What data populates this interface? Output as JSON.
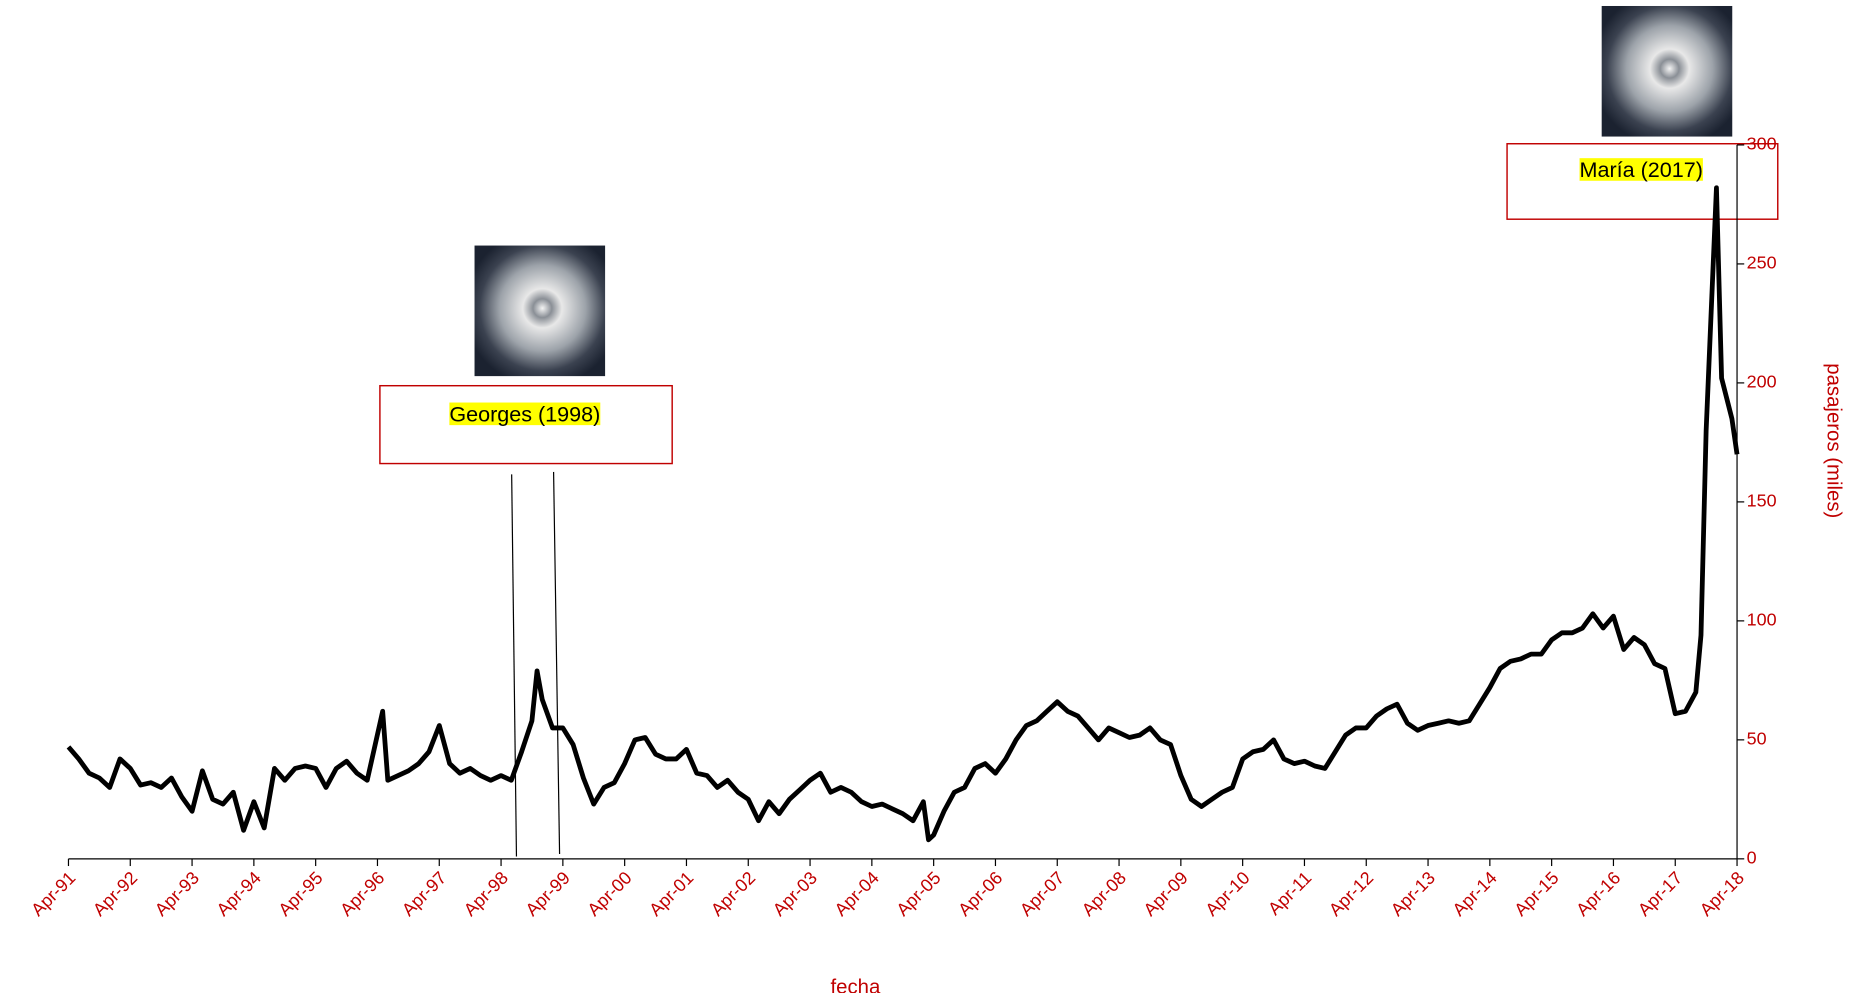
{
  "chart_data": {
    "type": "line",
    "x_label": "fecha",
    "y_label": "pasajeros (miles)",
    "x": [
      "1991-04",
      "1991-06",
      "1991-08",
      "1991-10",
      "1991-12",
      "1992-02",
      "1992-04",
      "1992-06",
      "1992-08",
      "1992-10",
      "1992-12",
      "1993-02",
      "1993-04",
      "1993-06",
      "1993-08",
      "1993-10",
      "1993-12",
      "1994-02",
      "1994-04",
      "1994-06",
      "1994-08",
      "1994-10",
      "1994-12",
      "1995-02",
      "1995-04",
      "1995-06",
      "1995-08",
      "1995-10",
      "1995-12",
      "1996-02",
      "1996-05",
      "1996-06",
      "1996-08",
      "1996-10",
      "1996-12",
      "1997-02",
      "1997-04",
      "1997-06",
      "1997-08",
      "1997-10",
      "1997-12",
      "1998-02",
      "1998-04",
      "1998-06",
      "1998-08",
      "1998-10",
      "1998-11",
      "1998-12",
      "1999-02",
      "1999-04",
      "1999-06",
      "1999-08",
      "1999-10",
      "1999-12",
      "2000-02",
      "2000-04",
      "2000-06",
      "2000-08",
      "2000-10",
      "2000-12",
      "2001-02",
      "2001-04",
      "2001-06",
      "2001-08",
      "2001-10",
      "2001-12",
      "2002-02",
      "2002-04",
      "2002-06",
      "2002-08",
      "2002-10",
      "2002-12",
      "2003-02",
      "2003-04",
      "2003-06",
      "2003-08",
      "2003-10",
      "2003-12",
      "2004-02",
      "2004-04",
      "2004-06",
      "2004-08",
      "2004-10",
      "2004-12",
      "2005-02",
      "2005-03",
      "2005-04",
      "2005-06",
      "2005-08",
      "2005-10",
      "2005-12",
      "2006-02",
      "2006-04",
      "2006-06",
      "2006-08",
      "2006-10",
      "2006-12",
      "2007-02",
      "2007-04",
      "2007-06",
      "2007-08",
      "2007-10",
      "2007-12",
      "2008-02",
      "2008-04",
      "2008-06",
      "2008-08",
      "2008-10",
      "2008-12",
      "2009-02",
      "2009-04",
      "2009-06",
      "2009-08",
      "2009-10",
      "2009-12",
      "2010-02",
      "2010-04",
      "2010-06",
      "2010-08",
      "2010-10",
      "2010-12",
      "2011-02",
      "2011-04",
      "2011-06",
      "2011-08",
      "2011-10",
      "2011-12",
      "2012-02",
      "2012-04",
      "2012-06",
      "2012-08",
      "2012-10",
      "2012-12",
      "2013-02",
      "2013-04",
      "2013-06",
      "2013-08",
      "2013-10",
      "2013-12",
      "2014-02",
      "2014-04",
      "2014-06",
      "2014-08",
      "2014-10",
      "2014-12",
      "2015-02",
      "2015-04",
      "2015-06",
      "2015-08",
      "2015-10",
      "2015-12",
      "2016-02",
      "2016-04",
      "2016-06",
      "2016-08",
      "2016-10",
      "2016-12",
      "2017-02",
      "2017-04",
      "2017-06",
      "2017-08",
      "2017-09",
      "2017-10",
      "2017-12",
      "2018-01",
      "2018-03",
      "2018-04"
    ],
    "series": [
      {
        "color": "#000000",
        "values": [
          47,
          42,
          36,
          34,
          30,
          42,
          38,
          31,
          32,
          30,
          34,
          26,
          20,
          37,
          25,
          23,
          28,
          12,
          24,
          13,
          38,
          33,
          38,
          39,
          38,
          30,
          38,
          41,
          36,
          33,
          62,
          33,
          35,
          37,
          40,
          45,
          56,
          40,
          36,
          38,
          35,
          33,
          35,
          33,
          45,
          58,
          79,
          67,
          55,
          55,
          48,
          34,
          23,
          30,
          32,
          40,
          50,
          51,
          44,
          42,
          42,
          46,
          36,
          35,
          30,
          33,
          28,
          25,
          16,
          24,
          19,
          25,
          29,
          33,
          36,
          28,
          30,
          28,
          24,
          22,
          23,
          21,
          19,
          16,
          24,
          8,
          10,
          20,
          28,
          30,
          38,
          40,
          36,
          42,
          50,
          56,
          58,
          62,
          66,
          62,
          60,
          55,
          50,
          55,
          53,
          51,
          52,
          55,
          50,
          48,
          35,
          25,
          22,
          25,
          28,
          30,
          42,
          45,
          46,
          50,
          42,
          40,
          41,
          39,
          38,
          45,
          52,
          55,
          55,
          60,
          63,
          65,
          57,
          54,
          56,
          57,
          58,
          57,
          58,
          65,
          72,
          80,
          83,
          84,
          86,
          86,
          92,
          95,
          95,
          97,
          103,
          97,
          102,
          88,
          93,
          90,
          82,
          80,
          61,
          62,
          70,
          94,
          180,
          282,
          202,
          185,
          170
        ]
      }
    ],
    "xlim": [
      "1991-04",
      "2018-04"
    ],
    "xticks": [
      {
        "value": "1991-04",
        "label": "Apr-91"
      },
      {
        "value": "1992-04",
        "label": "Apr-92"
      },
      {
        "value": "1993-04",
        "label": "Apr-93"
      },
      {
        "value": "1994-04",
        "label": "Apr-94"
      },
      {
        "value": "1995-04",
        "label": "Apr-95"
      },
      {
        "value": "1996-04",
        "label": "Apr-96"
      },
      {
        "value": "1997-04",
        "label": "Apr-97"
      },
      {
        "value": "1998-04",
        "label": "Apr-98"
      },
      {
        "value": "1999-04",
        "label": "Apr-99"
      },
      {
        "value": "2000-04",
        "label": "Apr-00"
      },
      {
        "value": "2001-04",
        "label": "Apr-01"
      },
      {
        "value": "2002-04",
        "label": "Apr-02"
      },
      {
        "value": "2003-04",
        "label": "Apr-03"
      },
      {
        "value": "2004-04",
        "label": "Apr-04"
      },
      {
        "value": "2005-04",
        "label": "Apr-05"
      },
      {
        "value": "2006-04",
        "label": "Apr-06"
      },
      {
        "value": "2007-04",
        "label": "Apr-07"
      },
      {
        "value": "2008-04",
        "label": "Apr-08"
      },
      {
        "value": "2009-04",
        "label": "Apr-09"
      },
      {
        "value": "2010-04",
        "label": "Apr-10"
      },
      {
        "value": "2011-04",
        "label": "Apr-11"
      },
      {
        "value": "2012-04",
        "label": "Apr-12"
      },
      {
        "value": "2013-04",
        "label": "Apr-13"
      },
      {
        "value": "2014-04",
        "label": "Apr-14"
      },
      {
        "value": "2015-04",
        "label": "Apr-15"
      },
      {
        "value": "2016-04",
        "label": "Apr-16"
      },
      {
        "value": "2017-04",
        "label": "Apr-17"
      },
      {
        "value": "2018-04",
        "label": "Apr-18"
      }
    ],
    "ylim": [
      0,
      300
    ],
    "yticks": [
      0,
      50,
      100,
      150,
      200,
      250,
      300
    ],
    "axis_color": "#c00000",
    "annotations": [
      {
        "text": "Georges (1998)"
      },
      {
        "text": "María (2017)"
      }
    ]
  }
}
